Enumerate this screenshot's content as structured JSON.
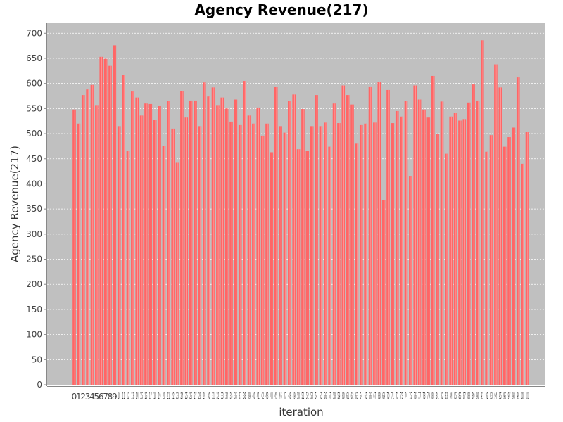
{
  "chart_data": {
    "type": "bar",
    "title": "Agency Revenue(217)",
    "xlabel": "iteration",
    "ylabel": "Agency Revenue(217)",
    "ylim": [
      0,
      720
    ],
    "yticks": [
      0,
      50,
      100,
      150,
      200,
      250,
      300,
      350,
      400,
      450,
      500,
      550,
      600,
      650,
      700
    ],
    "grid": true,
    "legend": "none",
    "colors": {
      "bar": "#ff6666",
      "bar_highlight": "#ffaaaa",
      "plot_bg": "#c0c0c0",
      "grid": "#ffffff"
    },
    "categories": [
      "0",
      "1",
      "2",
      "3",
      "4",
      "5",
      "6",
      "7",
      "8",
      "9",
      "10",
      "11",
      "12",
      "13",
      "14",
      "15",
      "16",
      "17",
      "18",
      "19",
      "20",
      "21",
      "22",
      "23",
      "24",
      "25",
      "26",
      "27",
      "28",
      "29",
      "30",
      "31",
      "32",
      "33",
      "34",
      "35",
      "36",
      "37",
      "38",
      "39",
      "40",
      "41",
      "42",
      "43",
      "44",
      "45",
      "46",
      "47",
      "48",
      "49",
      "50",
      "51",
      "52",
      "53",
      "54",
      "55",
      "56",
      "57",
      "58",
      "59",
      "60",
      "61",
      "62",
      "63",
      "64",
      "65",
      "66",
      "67",
      "68",
      "69",
      "70",
      "71",
      "72",
      "73",
      "74",
      "75",
      "76",
      "77",
      "78",
      "79",
      "80",
      "81",
      "82",
      "83",
      "84",
      "85",
      "86",
      "87",
      "88",
      "89",
      "90",
      "91",
      "92",
      "93",
      "94",
      "95",
      "96",
      "97",
      "98",
      "99",
      "100",
      "101"
    ],
    "values": [
      548,
      520,
      577,
      588,
      597,
      557,
      653,
      649,
      635,
      676,
      515,
      617,
      465,
      584,
      572,
      536,
      560,
      559,
      527,
      556,
      476,
      565,
      510,
      442,
      585,
      532,
      566,
      566,
      515,
      602,
      574,
      592,
      557,
      572,
      550,
      524,
      568,
      517,
      605,
      536,
      520,
      552,
      496,
      520,
      463,
      593,
      515,
      502,
      565,
      578,
      469,
      549,
      466,
      515,
      577,
      515,
      522,
      474,
      560,
      521,
      596,
      577,
      558,
      480,
      517,
      520,
      594,
      522,
      603,
      368,
      587,
      521,
      545,
      534,
      565,
      416,
      596,
      568,
      548,
      532,
      615,
      499,
      564,
      460,
      534,
      542,
      526,
      529,
      562,
      598,
      566,
      686,
      464,
      497,
      638,
      592,
      474,
      493,
      512,
      612,
      440,
      503
    ]
  }
}
